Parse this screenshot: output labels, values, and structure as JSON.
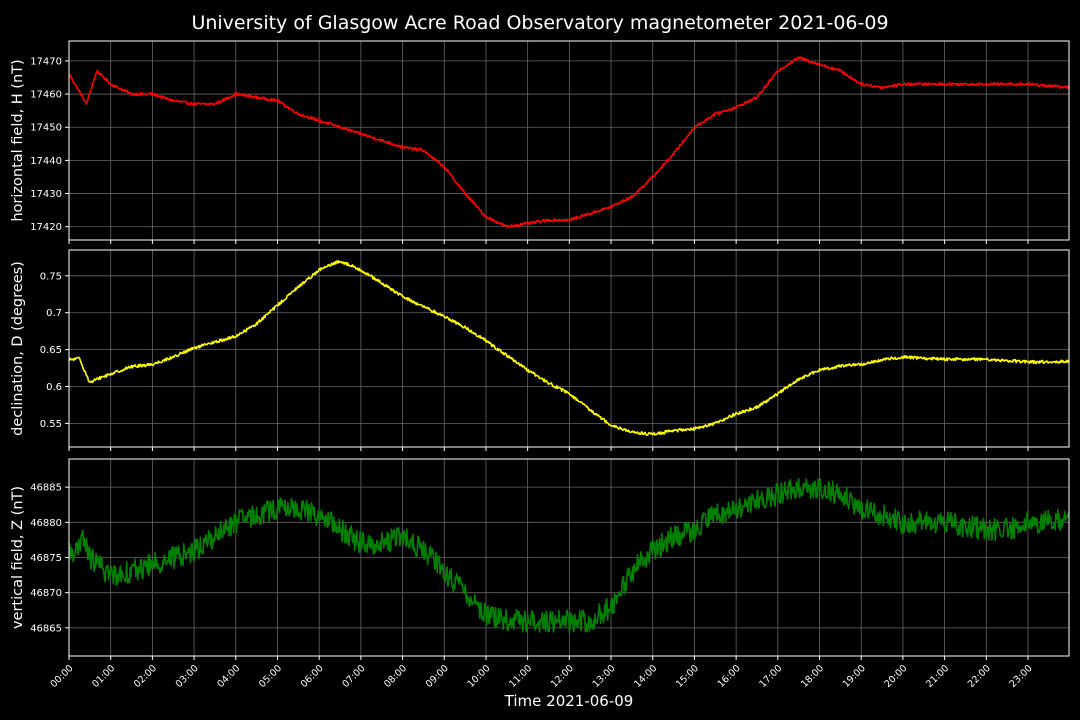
{
  "figure": {
    "title": "University of Glasgow Acre Road Observatory magnetometer 2021-06-09",
    "xlabel": "Time 2021-06-09"
  },
  "colors": {
    "background": "#000000",
    "grid": "#666666",
    "axes": "#ffffff"
  },
  "chart_data": [
    {
      "type": "line",
      "ylabel": "horizontal field, H (nT)",
      "color": "#ff0000",
      "ylim": [
        17416,
        17476
      ],
      "yticks": [
        17420,
        17430,
        17440,
        17450,
        17460,
        17470
      ],
      "noise": 0.4,
      "x": [
        "00:00",
        "00:20",
        "00:25",
        "00:40",
        "01:00",
        "01:30",
        "02:00",
        "02:30",
        "03:00",
        "03:30",
        "04:00",
        "04:30",
        "05:00",
        "05:30",
        "06:00",
        "06:30",
        "07:00",
        "07:30",
        "08:00",
        "08:30",
        "09:00",
        "09:30",
        "10:00",
        "10:30",
        "11:00",
        "11:30",
        "12:00",
        "12:30",
        "13:00",
        "13:30",
        "14:00",
        "14:30",
        "15:00",
        "15:30",
        "16:00",
        "16:30",
        "17:00",
        "17:30",
        "18:00",
        "18:30",
        "19:00",
        "19:30",
        "20:00",
        "21:00",
        "22:00",
        "23:00",
        "23:59"
      ],
      "y": [
        17466,
        17459,
        17457,
        17467,
        17463,
        17460,
        17460,
        17458,
        17457,
        17457,
        17460,
        17459,
        17458,
        17454,
        17452,
        17450,
        17448,
        17446,
        17444,
        17443,
        17438,
        17430,
        17423,
        17420,
        17421,
        17422,
        17422,
        17424,
        17426,
        17429,
        17435,
        17442,
        17450,
        17454,
        17456,
        17459,
        17467,
        17471,
        17469,
        17467,
        17463,
        17462,
        17463,
        17463,
        17463,
        17463,
        17462
      ]
    },
    {
      "type": "line",
      "ylabel": "declination, D (degrees)",
      "color": "#ffff00",
      "ylim": [
        0.518,
        0.785
      ],
      "yticks": [
        0.55,
        0.6,
        0.65,
        0.7,
        0.75
      ],
      "noise": 0.002,
      "x": [
        "00:00",
        "00:15",
        "00:30",
        "00:45",
        "01:00",
        "01:30",
        "02:00",
        "02:30",
        "03:00",
        "03:30",
        "04:00",
        "04:30",
        "05:00",
        "05:30",
        "06:00",
        "06:30",
        "07:00",
        "07:30",
        "08:00",
        "08:30",
        "09:00",
        "09:30",
        "10:00",
        "10:30",
        "11:00",
        "11:30",
        "12:00",
        "12:30",
        "13:00",
        "13:30",
        "14:00",
        "14:30",
        "15:00",
        "15:30",
        "16:00",
        "16:30",
        "17:00",
        "17:30",
        "18:00",
        "18:30",
        "19:00",
        "19:30",
        "20:00",
        "21:00",
        "22:00",
        "23:00",
        "23:59"
      ],
      "y": [
        0.636,
        0.638,
        0.605,
        0.612,
        0.617,
        0.627,
        0.63,
        0.64,
        0.652,
        0.66,
        0.668,
        0.685,
        0.71,
        0.735,
        0.758,
        0.77,
        0.758,
        0.74,
        0.722,
        0.708,
        0.695,
        0.68,
        0.662,
        0.642,
        0.622,
        0.605,
        0.59,
        0.568,
        0.548,
        0.538,
        0.535,
        0.54,
        0.543,
        0.55,
        0.563,
        0.572,
        0.59,
        0.61,
        0.622,
        0.628,
        0.63,
        0.636,
        0.64,
        0.637,
        0.637,
        0.633,
        0.634
      ]
    },
    {
      "type": "line",
      "ylabel": "vertical field, Z (nT)",
      "color": "#008000",
      "ylim": [
        46861,
        46889
      ],
      "yticks": [
        46865,
        46870,
        46875,
        46880,
        46885
      ],
      "noise": 1.6,
      "x": [
        "00:00",
        "00:15",
        "00:20",
        "00:30",
        "01:00",
        "01:30",
        "02:00",
        "02:30",
        "03:00",
        "03:30",
        "04:00",
        "04:30",
        "05:00",
        "05:30",
        "06:00",
        "06:30",
        "07:00",
        "07:30",
        "08:00",
        "08:30",
        "09:00",
        "09:30",
        "10:00",
        "10:30",
        "11:00",
        "11:30",
        "12:00",
        "12:30",
        "13:00",
        "13:30",
        "14:00",
        "14:30",
        "15:00",
        "15:30",
        "16:00",
        "16:30",
        "17:00",
        "17:30",
        "18:00",
        "18:30",
        "19:00",
        "19:30",
        "20:00",
        "20:30",
        "21:00",
        "22:00",
        "22:30",
        "23:00",
        "23:59"
      ],
      "y": [
        46876,
        46876,
        46878,
        46875,
        46872.5,
        46873,
        46874,
        46875,
        46876,
        46878,
        46880,
        46881,
        46882,
        46882,
        46881,
        46879,
        46877,
        46877,
        46878,
        46876,
        46873,
        46870,
        46867,
        46866,
        46866,
        46866,
        46866,
        46866,
        46868,
        46873,
        46876,
        46878,
        46879,
        46881,
        46882,
        46883,
        46884,
        46885,
        46885,
        46884,
        46882,
        46881,
        46880,
        46880,
        46880,
        46879,
        46879,
        46880,
        46880.3
      ]
    }
  ]
}
